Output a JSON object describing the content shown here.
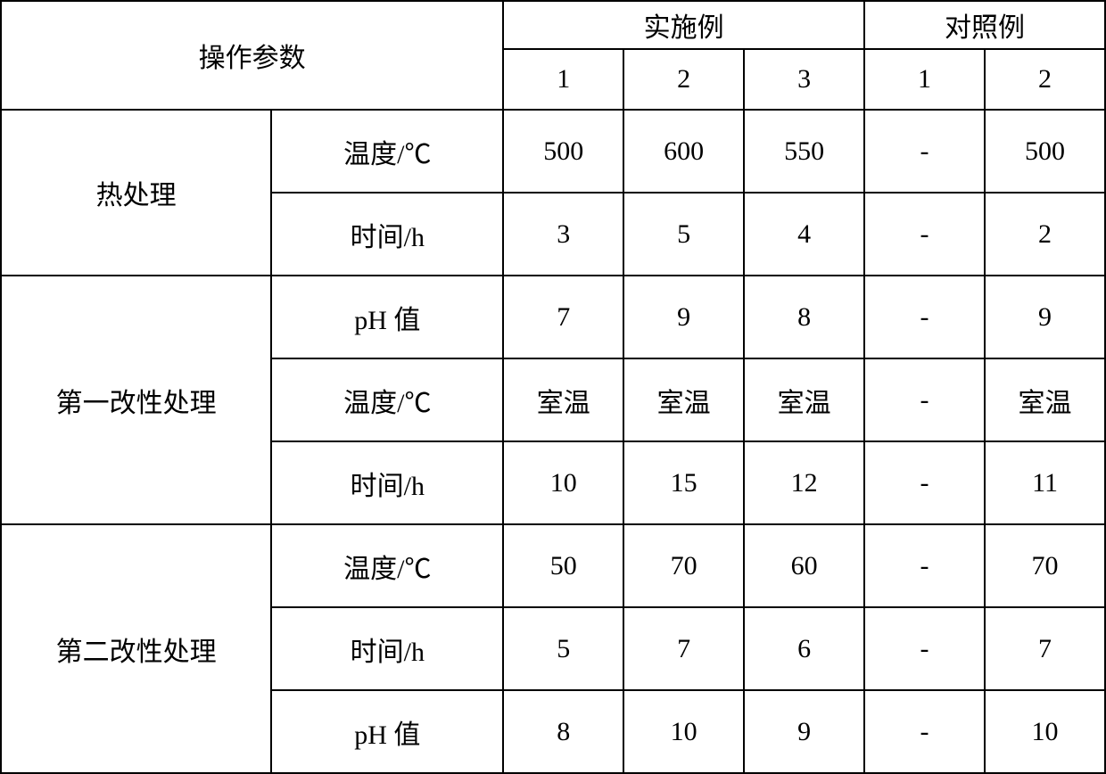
{
  "table": {
    "header": {
      "param_label": "操作参数",
      "example_label": "实施例",
      "control_label": "对照例",
      "col_numbers": [
        "1",
        "2",
        "3",
        "1",
        "2"
      ]
    },
    "groups": [
      {
        "name": "热处理",
        "rows": [
          {
            "label": "温度/℃",
            "values": [
              "500",
              "600",
              "550",
              "-",
              "500"
            ]
          },
          {
            "label": "时间/h",
            "values": [
              "3",
              "5",
              "4",
              "-",
              "2"
            ]
          }
        ]
      },
      {
        "name": "第一改性处理",
        "rows": [
          {
            "label": "pH 值",
            "values": [
              "7",
              "9",
              "8",
              "-",
              "9"
            ]
          },
          {
            "label": "温度/℃",
            "values": [
              "室温",
              "室温",
              "室温",
              "-",
              "室温"
            ]
          },
          {
            "label": "时间/h",
            "values": [
              "10",
              "15",
              "12",
              "-",
              "11"
            ]
          }
        ]
      },
      {
        "name": "第二改性处理",
        "rows": [
          {
            "label": "温度/℃",
            "values": [
              "50",
              "70",
              "60",
              "-",
              "70"
            ]
          },
          {
            "label": "时间/h",
            "values": [
              "5",
              "7",
              "6",
              "-",
              "7"
            ]
          },
          {
            "label": "pH 值",
            "values": [
              "8",
              "10",
              "9",
              "-",
              "10"
            ]
          }
        ]
      }
    ],
    "styling": {
      "border_color": "#000000",
      "border_width": 2,
      "background_color": "#ffffff",
      "font_family": "SimSun",
      "font_size": 30,
      "text_color": "#000000",
      "col_widths_pct": [
        24.5,
        21,
        10.9,
        10.9,
        10.9,
        10.9,
        10.9
      ]
    }
  }
}
